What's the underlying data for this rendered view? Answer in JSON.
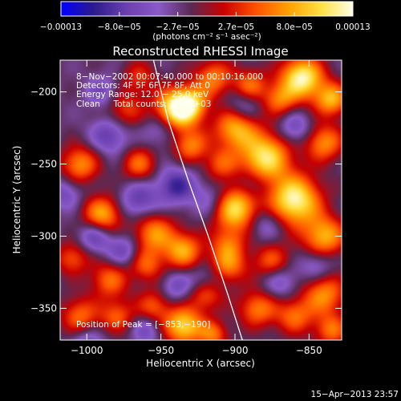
{
  "chart_data": {
    "type": "heatmap",
    "title": "Reconstructed RHESSI Image",
    "xlabel": "Heliocentric X (arcsec)",
    "ylabel": "Heliocentric Y (arcsec)",
    "xlim": [
      -1018,
      -828
    ],
    "ylim": [
      -372,
      -178
    ],
    "xticks": [
      -1000,
      -950,
      -900,
      -850
    ],
    "yticks": [
      -200,
      -250,
      -300,
      -350
    ],
    "xtick_labels": [
      "−1000",
      "−950",
      "−900",
      "−850"
    ],
    "ytick_labels": [
      "−200",
      "−250",
      "−300",
      "−350"
    ],
    "colorbar": {
      "range": [
        -0.00013,
        0.00013
      ],
      "tick_labels": [
        "−0.00013",
        "−8.0e−05",
        "−2.7e−05",
        "2.7e−05",
        "8.0e−05",
        "0.00013"
      ],
      "unit_label": "(photons cm⁻² s⁻¹ asec⁻²)",
      "colors": [
        "#0000ff",
        "#2a1a8c",
        "#6a3fb0",
        "#8a5ac8",
        "#5a2a55",
        "#c80000",
        "#ff5000",
        "#ffa000",
        "#ffe040",
        "#ffffe8"
      ]
    },
    "annotations": [
      "8−Nov−2002 00:07:40.000 to 00:10:16.000",
      "Detectors: 4F 5F 6F 7F 8F, Att 0",
      "Energy Range: 12.0 − 25.0 keV",
      "Clean     Total counts: 1.20E+03"
    ],
    "peak_label": "Position of Peak = [−853,−190]",
    "peak_position": [
      -853,
      -190
    ],
    "limb_curve": [
      [
        -955,
        -178
      ],
      [
        -945,
        -220
      ],
      [
        -932,
        -260
      ],
      [
        -918,
        -300
      ],
      [
        -905,
        -340
      ],
      [
        -895,
        -372
      ]
    ],
    "sources": [
      [
        -940,
        -212,
        1.0,
        10
      ],
      [
        -930,
        -208,
        0.6,
        8
      ],
      [
        -965,
        -190,
        0.35,
        8
      ],
      [
        -915,
        -190,
        0.55,
        9
      ],
      [
        -900,
        -225,
        0.7,
        10
      ],
      [
        -880,
        -245,
        0.9,
        12
      ],
      [
        -900,
        -280,
        0.95,
        11
      ],
      [
        -840,
        -235,
        0.6,
        9
      ],
      [
        -860,
        -275,
        1.0,
        12
      ],
      [
        -840,
        -300,
        0.7,
        10
      ],
      [
        -855,
        -190,
        1.0,
        10
      ],
      [
        -835,
        -205,
        0.7,
        8
      ],
      [
        -870,
        -205,
        0.5,
        8
      ],
      [
        -890,
        -195,
        0.5,
        8
      ],
      [
        -975,
        -212,
        0.4,
        9
      ],
      [
        -1005,
        -250,
        0.6,
        9
      ],
      [
        -990,
        -285,
        0.7,
        9
      ],
      [
        -1010,
        -315,
        0.45,
        8
      ],
      [
        -965,
        -250,
        0.5,
        8
      ],
      [
        -955,
        -298,
        0.6,
        10
      ],
      [
        -935,
        -310,
        0.65,
        9
      ],
      [
        -960,
        -320,
        0.45,
        8
      ],
      [
        -985,
        -330,
        0.5,
        9
      ],
      [
        -1005,
        -355,
        0.5,
        9
      ],
      [
        -980,
        -355,
        0.45,
        8
      ],
      [
        -955,
        -348,
        0.45,
        8
      ],
      [
        -935,
        -362,
        0.85,
        9
      ],
      [
        -915,
        -368,
        0.5,
        7
      ],
      [
        -910,
        -250,
        0.4,
        8
      ],
      [
        -930,
        -237,
        0.55,
        8
      ],
      [
        -875,
        -318,
        0.5,
        9
      ],
      [
        -840,
        -340,
        0.6,
        10
      ],
      [
        -860,
        -355,
        0.5,
        9
      ],
      [
        -885,
        -350,
        0.55,
        9
      ],
      [
        -920,
        -340,
        0.5,
        8
      ],
      [
        -905,
        -320,
        0.55,
        9
      ],
      [
        -835,
        -365,
        0.5,
        8
      ],
      [
        -905,
        -305,
        0.4,
        8
      ],
      [
        -940,
        -265,
        -0.5,
        9
      ],
      [
        -915,
        -275,
        -0.35,
        9
      ],
      [
        -985,
        -230,
        -0.4,
        9
      ],
      [
        -965,
        -275,
        -0.4,
        9
      ],
      [
        -995,
        -300,
        -0.4,
        8
      ],
      [
        -975,
        -310,
        -0.35,
        8
      ],
      [
        -880,
        -290,
        -0.3,
        9
      ],
      [
        -860,
        -225,
        -0.35,
        8
      ],
      [
        -870,
        -330,
        -0.35,
        9
      ],
      [
        -990,
        -200,
        -0.3,
        8
      ],
      [
        -845,
        -320,
        -0.3,
        8
      ],
      [
        -940,
        -335,
        -0.3,
        8
      ],
      [
        -1000,
        -375,
        -0.35,
        8
      ],
      [
        -950,
        -225,
        -0.3,
        8
      ],
      [
        -895,
        -210,
        -0.3,
        8
      ],
      [
        -920,
        -330,
        -0.3,
        8
      ],
      [
        -890,
        -265,
        -0.3,
        8
      ],
      [
        -960,
        -365,
        -0.3,
        7
      ],
      [
        -1015,
        -270,
        -0.3,
        8
      ]
    ]
  },
  "footer": {
    "timestamp": "15−Apr−2013 23:57"
  }
}
